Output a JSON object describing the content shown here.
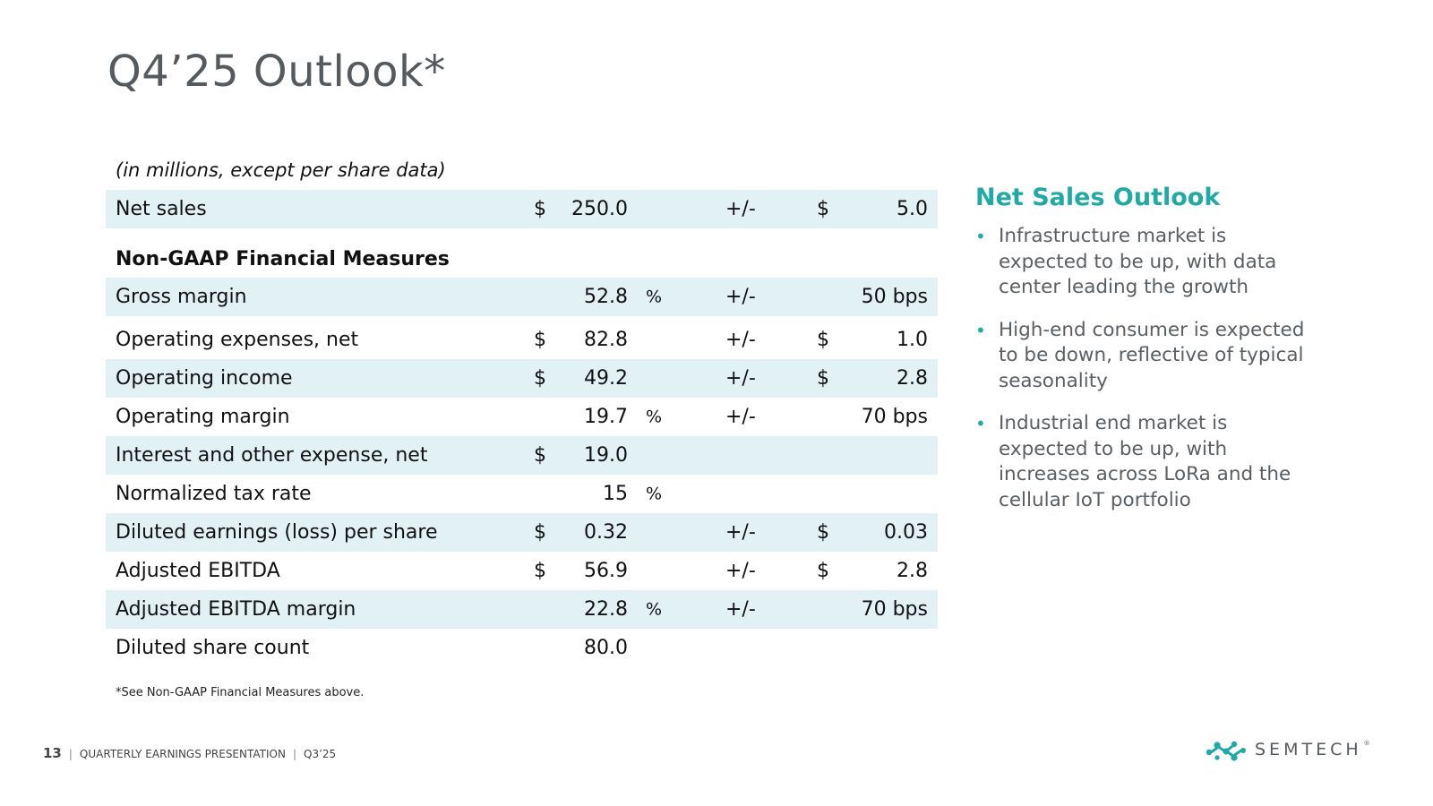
{
  "title": "Q4’25 Outlook*",
  "units_note": "(in millions, except per share data)",
  "table": {
    "rows": [
      {
        "label": "Net sales",
        "cur1": "$",
        "value": "250.0",
        "pct": "",
        "pm": "+/-",
        "cur2": "$",
        "range": "5.0"
      },
      {
        "label": "Non-GAAP Financial Measures",
        "cur1": "",
        "value": "",
        "pct": "",
        "pm": "",
        "cur2": "",
        "range": ""
      },
      {
        "label": "Gross margin",
        "cur1": "",
        "value": "52.8",
        "pct": "%",
        "pm": "+/-",
        "cur2": "",
        "range": "50 bps"
      },
      {
        "label": "Operating expenses, net",
        "cur1": "$",
        "value": "82.8",
        "pct": "",
        "pm": "+/-",
        "cur2": "$",
        "range": "1.0"
      },
      {
        "label": "Operating income",
        "cur1": "$",
        "value": "49.2",
        "pct": "",
        "pm": "+/-",
        "cur2": "$",
        "range": "2.8"
      },
      {
        "label": "Operating margin",
        "cur1": "",
        "value": "19.7",
        "pct": "%",
        "pm": "+/-",
        "cur2": "",
        "range": "70 bps"
      },
      {
        "label": "Interest and other expense, net",
        "cur1": "$",
        "value": "19.0",
        "pct": "",
        "pm": "",
        "cur2": "",
        "range": ""
      },
      {
        "label": "Normalized tax rate",
        "cur1": "",
        "value": "15",
        "pct": "%",
        "pm": "",
        "cur2": "",
        "range": ""
      },
      {
        "label": "Diluted earnings (loss) per share",
        "cur1": "$",
        "value": "0.32",
        "pct": "",
        "pm": "+/-",
        "cur2": "$",
        "range": "0.03"
      },
      {
        "label": "Adjusted EBITDA",
        "cur1": "$",
        "value": "56.9",
        "pct": "",
        "pm": "+/-",
        "cur2": "$",
        "range": "2.8"
      },
      {
        "label": "Adjusted EBITDA margin",
        "cur1": "",
        "value": "22.8",
        "pct": "%",
        "pm": "+/-",
        "cur2": "",
        "range": "70 bps"
      },
      {
        "label": "Diluted share count",
        "cur1": "",
        "value": "80.0",
        "pct": "",
        "pm": "",
        "cur2": "",
        "range": ""
      }
    ]
  },
  "footnote": "*See Non-GAAP Financial Measures above.",
  "sidebar": {
    "title": "Net Sales Outlook",
    "bullets": [
      "Infrastructure market is expected to be up, with data center leading the growth",
      "High-end consumer is expected to be down, reflective of typical seasonality",
      "Industrial end market is expected to be up, with increases across LoRa and the cellular IoT portfolio"
    ]
  },
  "footer": {
    "page_number": "13",
    "divider": "|",
    "presentation": "QUARTERLY EARNINGS PRESENTATION",
    "divider2": "|",
    "period": "Q3’25"
  },
  "logo": {
    "text": "SEMTECH",
    "mark": "®",
    "icon": "semtech-logo-icon"
  },
  "colors": {
    "accent": "#20a9a6",
    "row_shade": "#e1f1f4",
    "title": "#555a5e"
  }
}
